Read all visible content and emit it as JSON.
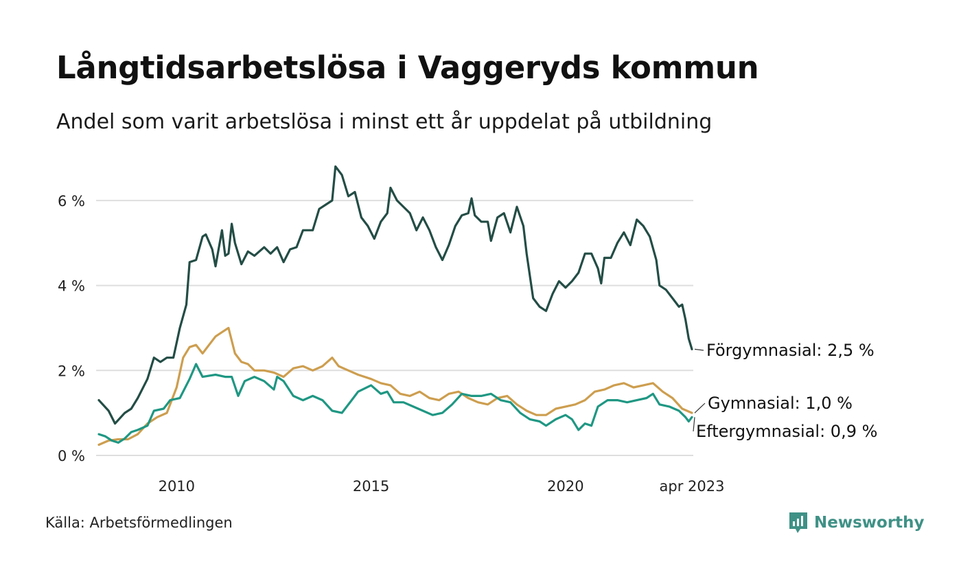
{
  "header": {
    "title": "Långtidsarbetslösa i Vaggeryds kommun",
    "subtitle": "Andel som varit arbetslösa i minst ett år uppdelat på utbildning"
  },
  "footer": {
    "source": "Källa: Arbetsförmedlingen",
    "brand": "Newsworthy",
    "brand_color": "#3f9186"
  },
  "chart_data": {
    "type": "line",
    "x_start": "2008-01",
    "x_end": "2023-04",
    "x_tick_labels": [
      {
        "x": "2010-01",
        "label": "2010"
      },
      {
        "x": "2015-01",
        "label": "2015"
      },
      {
        "x": "2020-01",
        "label": "2020"
      },
      {
        "x": "2023-04",
        "label": "apr 2023"
      }
    ],
    "y_ticks": [
      {
        "value": 0,
        "label": "0 %"
      },
      {
        "value": 2,
        "label": "2 %"
      },
      {
        "value": 4,
        "label": "4 %"
      },
      {
        "value": 6,
        "label": "6 %"
      }
    ],
    "ylim": [
      0,
      7
    ],
    "grid": "horizontal",
    "series": [
      {
        "name": "Förgymnasial",
        "end_label": "Förgymnasial: 2,5 %",
        "color": "#234d45",
        "points": [
          [
            "2008-01",
            1.3
          ],
          [
            "2008-04",
            1.05
          ],
          [
            "2008-06",
            0.75
          ],
          [
            "2008-09",
            1.0
          ],
          [
            "2008-11",
            1.1
          ],
          [
            "2009-01",
            1.35
          ],
          [
            "2009-04",
            1.8
          ],
          [
            "2009-06",
            2.3
          ],
          [
            "2009-08",
            2.2
          ],
          [
            "2009-10",
            2.3
          ],
          [
            "2009-12",
            2.3
          ],
          [
            "2010-02",
            3.0
          ],
          [
            "2010-04",
            3.55
          ],
          [
            "2010-05",
            4.55
          ],
          [
            "2010-07",
            4.6
          ],
          [
            "2010-09",
            5.15
          ],
          [
            "2010-10",
            5.2
          ],
          [
            "2010-12",
            4.85
          ],
          [
            "2011-01",
            4.45
          ],
          [
            "2011-03",
            5.3
          ],
          [
            "2011-04",
            4.7
          ],
          [
            "2011-05",
            4.75
          ],
          [
            "2011-06",
            5.45
          ],
          [
            "2011-07",
            5.0
          ],
          [
            "2011-09",
            4.5
          ],
          [
            "2011-11",
            4.8
          ],
          [
            "2012-01",
            4.7
          ],
          [
            "2012-04",
            4.9
          ],
          [
            "2012-06",
            4.75
          ],
          [
            "2012-08",
            4.9
          ],
          [
            "2012-10",
            4.55
          ],
          [
            "2012-12",
            4.85
          ],
          [
            "2013-02",
            4.9
          ],
          [
            "2013-04",
            5.3
          ],
          [
            "2013-07",
            5.3
          ],
          [
            "2013-09",
            5.8
          ],
          [
            "2013-11",
            5.9
          ],
          [
            "2014-01",
            6.0
          ],
          [
            "2014-02",
            6.8
          ],
          [
            "2014-04",
            6.6
          ],
          [
            "2014-06",
            6.1
          ],
          [
            "2014-08",
            6.2
          ],
          [
            "2014-10",
            5.6
          ],
          [
            "2014-12",
            5.4
          ],
          [
            "2015-02",
            5.1
          ],
          [
            "2015-04",
            5.5
          ],
          [
            "2015-06",
            5.7
          ],
          [
            "2015-07",
            6.3
          ],
          [
            "2015-09",
            6.0
          ],
          [
            "2015-11",
            5.85
          ],
          [
            "2016-01",
            5.7
          ],
          [
            "2016-03",
            5.3
          ],
          [
            "2016-05",
            5.6
          ],
          [
            "2016-07",
            5.3
          ],
          [
            "2016-09",
            4.9
          ],
          [
            "2016-11",
            4.6
          ],
          [
            "2017-01",
            4.95
          ],
          [
            "2017-03",
            5.4
          ],
          [
            "2017-05",
            5.65
          ],
          [
            "2017-07",
            5.7
          ],
          [
            "2017-08",
            6.05
          ],
          [
            "2017-09",
            5.65
          ],
          [
            "2017-11",
            5.5
          ],
          [
            "2018-01",
            5.5
          ],
          [
            "2018-02",
            5.05
          ],
          [
            "2018-04",
            5.6
          ],
          [
            "2018-06",
            5.7
          ],
          [
            "2018-08",
            5.25
          ],
          [
            "2018-10",
            5.85
          ],
          [
            "2018-12",
            5.4
          ],
          [
            "2019-01",
            4.75
          ],
          [
            "2019-03",
            3.7
          ],
          [
            "2019-05",
            3.5
          ],
          [
            "2019-07",
            3.4
          ],
          [
            "2019-09",
            3.8
          ],
          [
            "2019-11",
            4.1
          ],
          [
            "2020-01",
            3.95
          ],
          [
            "2020-03",
            4.1
          ],
          [
            "2020-05",
            4.3
          ],
          [
            "2020-07",
            4.75
          ],
          [
            "2020-09",
            4.75
          ],
          [
            "2020-11",
            4.4
          ],
          [
            "2020-12",
            4.05
          ],
          [
            "2021-01",
            4.65
          ],
          [
            "2021-03",
            4.65
          ],
          [
            "2021-05",
            5.0
          ],
          [
            "2021-07",
            5.25
          ],
          [
            "2021-09",
            4.95
          ],
          [
            "2021-11",
            5.55
          ],
          [
            "2022-01",
            5.4
          ],
          [
            "2022-03",
            5.15
          ],
          [
            "2022-05",
            4.6
          ],
          [
            "2022-06",
            4.0
          ],
          [
            "2022-08",
            3.9
          ],
          [
            "2022-10",
            3.7
          ],
          [
            "2022-12",
            3.5
          ],
          [
            "2023-01",
            3.55
          ],
          [
            "2023-02",
            3.2
          ],
          [
            "2023-03",
            2.75
          ],
          [
            "2023-04",
            2.5
          ]
        ]
      },
      {
        "name": "Gymnasial",
        "end_label": "Gymnasial: 1,0 %",
        "color": "#cd9e4f",
        "points": [
          [
            "2008-01",
            0.25
          ],
          [
            "2008-04",
            0.35
          ],
          [
            "2008-07",
            0.38
          ],
          [
            "2008-10",
            0.38
          ],
          [
            "2009-01",
            0.5
          ],
          [
            "2009-04",
            0.75
          ],
          [
            "2009-07",
            0.9
          ],
          [
            "2009-10",
            1.0
          ],
          [
            "2010-01",
            1.6
          ],
          [
            "2010-03",
            2.3
          ],
          [
            "2010-05",
            2.55
          ],
          [
            "2010-07",
            2.6
          ],
          [
            "2010-09",
            2.4
          ],
          [
            "2010-11",
            2.6
          ],
          [
            "2011-01",
            2.8
          ],
          [
            "2011-03",
            2.9
          ],
          [
            "2011-05",
            3.0
          ],
          [
            "2011-07",
            2.4
          ],
          [
            "2011-09",
            2.2
          ],
          [
            "2011-11",
            2.15
          ],
          [
            "2012-01",
            2.0
          ],
          [
            "2012-04",
            2.0
          ],
          [
            "2012-07",
            1.95
          ],
          [
            "2012-10",
            1.85
          ],
          [
            "2013-01",
            2.05
          ],
          [
            "2013-04",
            2.1
          ],
          [
            "2013-07",
            2.0
          ],
          [
            "2013-10",
            2.1
          ],
          [
            "2014-01",
            2.3
          ],
          [
            "2014-03",
            2.1
          ],
          [
            "2014-06",
            2.0
          ],
          [
            "2014-09",
            1.9
          ],
          [
            "2015-01",
            1.8
          ],
          [
            "2015-04",
            1.7
          ],
          [
            "2015-07",
            1.65
          ],
          [
            "2015-10",
            1.45
          ],
          [
            "2016-01",
            1.4
          ],
          [
            "2016-04",
            1.5
          ],
          [
            "2016-07",
            1.35
          ],
          [
            "2016-10",
            1.3
          ],
          [
            "2017-01",
            1.45
          ],
          [
            "2017-04",
            1.5
          ],
          [
            "2017-07",
            1.35
          ],
          [
            "2017-10",
            1.25
          ],
          [
            "2018-01",
            1.2
          ],
          [
            "2018-04",
            1.35
          ],
          [
            "2018-07",
            1.4
          ],
          [
            "2018-10",
            1.2
          ],
          [
            "2019-01",
            1.05
          ],
          [
            "2019-04",
            0.95
          ],
          [
            "2019-07",
            0.95
          ],
          [
            "2019-10",
            1.1
          ],
          [
            "2020-01",
            1.15
          ],
          [
            "2020-04",
            1.2
          ],
          [
            "2020-07",
            1.3
          ],
          [
            "2020-10",
            1.5
          ],
          [
            "2021-01",
            1.55
          ],
          [
            "2021-04",
            1.65
          ],
          [
            "2021-07",
            1.7
          ],
          [
            "2021-10",
            1.6
          ],
          [
            "2022-01",
            1.65
          ],
          [
            "2022-04",
            1.7
          ],
          [
            "2022-07",
            1.5
          ],
          [
            "2022-10",
            1.35
          ],
          [
            "2023-01",
            1.1
          ],
          [
            "2023-04",
            1.0
          ]
        ]
      },
      {
        "name": "Eftergymnasial",
        "end_label": "Eftergymnasial: 0,9 %",
        "color": "#1f9783",
        "points": [
          [
            "2008-01",
            0.5
          ],
          [
            "2008-03",
            0.45
          ],
          [
            "2008-05",
            0.35
          ],
          [
            "2008-07",
            0.3
          ],
          [
            "2008-09",
            0.4
          ],
          [
            "2008-11",
            0.55
          ],
          [
            "2009-01",
            0.6
          ],
          [
            "2009-04",
            0.7
          ],
          [
            "2009-06",
            1.05
          ],
          [
            "2009-09",
            1.1
          ],
          [
            "2009-11",
            1.3
          ],
          [
            "2010-02",
            1.35
          ],
          [
            "2010-05",
            1.8
          ],
          [
            "2010-07",
            2.15
          ],
          [
            "2010-09",
            1.85
          ],
          [
            "2011-01",
            1.9
          ],
          [
            "2011-04",
            1.85
          ],
          [
            "2011-06",
            1.85
          ],
          [
            "2011-08",
            1.4
          ],
          [
            "2011-10",
            1.75
          ],
          [
            "2012-01",
            1.85
          ],
          [
            "2012-04",
            1.75
          ],
          [
            "2012-07",
            1.55
          ],
          [
            "2012-08",
            1.85
          ],
          [
            "2012-10",
            1.75
          ],
          [
            "2013-01",
            1.4
          ],
          [
            "2013-04",
            1.3
          ],
          [
            "2013-07",
            1.4
          ],
          [
            "2013-10",
            1.3
          ],
          [
            "2014-01",
            1.05
          ],
          [
            "2014-04",
            1.0
          ],
          [
            "2014-07",
            1.3
          ],
          [
            "2014-09",
            1.5
          ],
          [
            "2015-01",
            1.65
          ],
          [
            "2015-04",
            1.45
          ],
          [
            "2015-06",
            1.5
          ],
          [
            "2015-08",
            1.25
          ],
          [
            "2015-11",
            1.25
          ],
          [
            "2016-02",
            1.15
          ],
          [
            "2016-05",
            1.05
          ],
          [
            "2016-08",
            0.95
          ],
          [
            "2016-11",
            1.0
          ],
          [
            "2017-02",
            1.2
          ],
          [
            "2017-05",
            1.45
          ],
          [
            "2017-08",
            1.4
          ],
          [
            "2017-11",
            1.4
          ],
          [
            "2018-02",
            1.45
          ],
          [
            "2018-05",
            1.3
          ],
          [
            "2018-08",
            1.25
          ],
          [
            "2018-11",
            1.0
          ],
          [
            "2019-02",
            0.85
          ],
          [
            "2019-05",
            0.8
          ],
          [
            "2019-07",
            0.7
          ],
          [
            "2019-10",
            0.85
          ],
          [
            "2020-01",
            0.95
          ],
          [
            "2020-03",
            0.85
          ],
          [
            "2020-05",
            0.6
          ],
          [
            "2020-07",
            0.75
          ],
          [
            "2020-09",
            0.7
          ],
          [
            "2020-11",
            1.15
          ],
          [
            "2021-02",
            1.3
          ],
          [
            "2021-05",
            1.3
          ],
          [
            "2021-08",
            1.25
          ],
          [
            "2021-11",
            1.3
          ],
          [
            "2022-02",
            1.35
          ],
          [
            "2022-04",
            1.45
          ],
          [
            "2022-06",
            1.2
          ],
          [
            "2022-09",
            1.15
          ],
          [
            "2022-12",
            1.05
          ],
          [
            "2023-02",
            0.9
          ],
          [
            "2023-03",
            0.8
          ],
          [
            "2023-04",
            0.9
          ]
        ]
      }
    ]
  }
}
